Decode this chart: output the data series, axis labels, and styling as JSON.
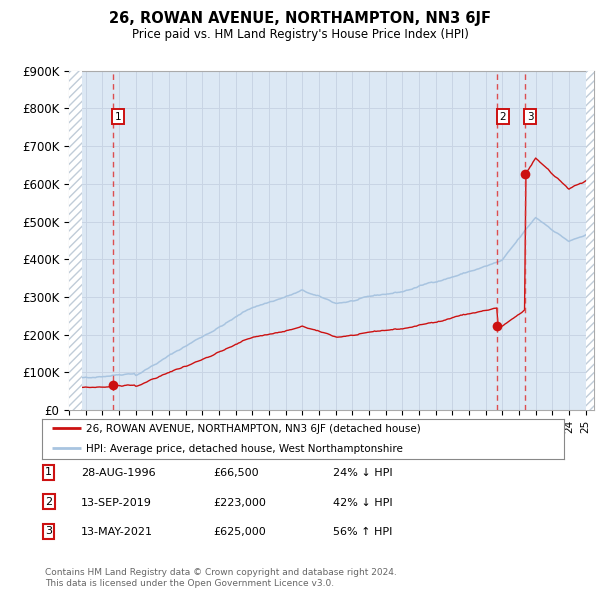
{
  "title": "26, ROWAN AVENUE, NORTHAMPTON, NN3 6JF",
  "subtitle": "Price paid vs. HM Land Registry's House Price Index (HPI)",
  "legend_line1": "26, ROWAN AVENUE, NORTHAMPTON, NN3 6JF (detached house)",
  "legend_line2": "HPI: Average price, detached house, West Northamptonshire",
  "footer1": "Contains HM Land Registry data © Crown copyright and database right 2024.",
  "footer2": "This data is licensed under the Open Government Licence v3.0.",
  "sales": [
    {
      "num": 1,
      "date": "28-AUG-1996",
      "price": 66500,
      "pct": "24%",
      "dir": "↓",
      "date_val": 1996.64
    },
    {
      "num": 2,
      "date": "13-SEP-2019",
      "price": 223000,
      "pct": "42%",
      "dir": "↓",
      "date_val": 2019.7
    },
    {
      "num": 3,
      "date": "13-MAY-2021",
      "price": 625000,
      "pct": "56%",
      "dir": "↑",
      "date_val": 2021.36
    }
  ],
  "ylim": [
    0,
    900000
  ],
  "xlim_start": 1994.0,
  "xlim_end": 2025.5,
  "hatch_left_end": 1994.75,
  "hatch_right_start": 2025.0,
  "hpi_color": "#a8c4e0",
  "price_color": "#cc1111",
  "sale_marker_color": "#cc1111",
  "vline_color": "#dd3333",
  "grid_color": "#c8d4e4",
  "bg_color": "#dce8f4",
  "hatch_color": "#c0ccd8",
  "ytick_labels": [
    "£0",
    "£100K",
    "£200K",
    "£300K",
    "£400K",
    "£500K",
    "£600K",
    "£700K",
    "£800K",
    "£900K"
  ],
  "ytick_values": [
    0,
    100000,
    200000,
    300000,
    400000,
    500000,
    600000,
    700000,
    800000,
    900000
  ]
}
